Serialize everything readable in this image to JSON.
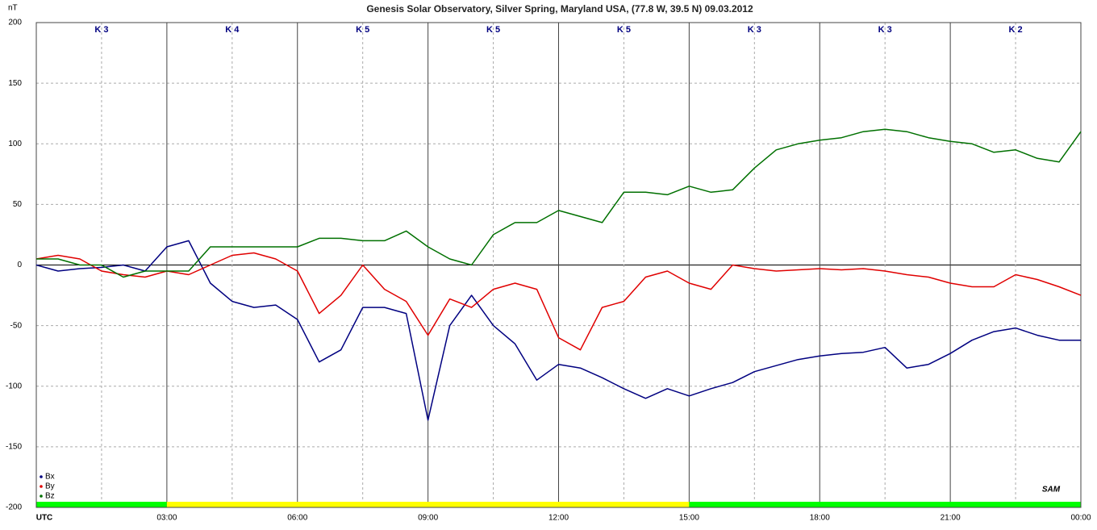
{
  "chart_data": {
    "type": "line",
    "title": "Genesis Solar Observatory, Silver Spring, Maryland USA, (77.8 W, 39.5 N)  09.03.2012",
    "y_label": "nT",
    "logo": "SAM",
    "x": [
      0,
      0.5,
      1,
      1.5,
      2,
      2.5,
      3,
      3.5,
      4,
      4.5,
      5,
      5.5,
      6,
      6.5,
      7,
      7.5,
      8,
      8.5,
      9,
      9.5,
      10,
      10.5,
      11,
      11.5,
      12,
      12.5,
      13,
      13.5,
      14,
      14.5,
      15,
      15.5,
      16,
      16.5,
      17,
      17.5,
      18,
      18.5,
      19,
      19.5,
      20,
      20.5,
      21,
      21.5,
      22,
      22.5,
      23,
      23.5,
      24
    ],
    "series": [
      {
        "name": "Bx",
        "color": "#000080",
        "values": [
          0,
          -5,
          -3,
          -2,
          0,
          -5,
          15,
          20,
          -15,
          -30,
          -35,
          -33,
          -45,
          -80,
          -70,
          -35,
          -35,
          -40,
          -128,
          -50,
          -25,
          -50,
          -65,
          -95,
          -82,
          -85,
          -93,
          -102,
          -110,
          -102,
          -108,
          -102,
          -97,
          -88,
          -83,
          -78,
          -75,
          -73,
          -72,
          -68,
          -85,
          -82,
          -73,
          -62,
          -55,
          -52,
          -58,
          -62,
          -62
        ]
      },
      {
        "name": "By",
        "color": "#e00000",
        "values": [
          5,
          8,
          5,
          -5,
          -8,
          -10,
          -5,
          -8,
          0,
          8,
          10,
          5,
          -5,
          -40,
          -25,
          0,
          -20,
          -30,
          -58,
          -28,
          -35,
          -20,
          -15,
          -20,
          -60,
          -70,
          -35,
          -30,
          -10,
          -5,
          -15,
          -20,
          0,
          -3,
          -5,
          -4,
          -3,
          -4,
          -3,
          -5,
          -8,
          -10,
          -15,
          -18,
          -18,
          -8,
          -12,
          -18,
          -25
        ]
      },
      {
        "name": "Bz",
        "color": "#007000",
        "values": [
          5,
          5,
          0,
          0,
          -10,
          -5,
          -5,
          -5,
          15,
          15,
          15,
          15,
          15,
          22,
          22,
          20,
          20,
          28,
          15,
          5,
          0,
          25,
          35,
          35,
          45,
          40,
          35,
          60,
          60,
          58,
          65,
          60,
          62,
          80,
          95,
          100,
          103,
          105,
          110,
          112,
          110,
          105,
          102,
          100,
          93,
          95,
          88,
          85,
          110
        ]
      }
    ],
    "xlim": [
      0,
      24
    ],
    "xticks": [
      {
        "value": 0,
        "label": "UTC"
      },
      {
        "value": 3,
        "label": "03:00"
      },
      {
        "value": 6,
        "label": "06:00"
      },
      {
        "value": 9,
        "label": "09:00"
      },
      {
        "value": 12,
        "label": "12:00"
      },
      {
        "value": 15,
        "label": "15:00"
      },
      {
        "value": 18,
        "label": "18:00"
      },
      {
        "value": 21,
        "label": "21:00"
      },
      {
        "value": 24,
        "label": "00:00"
      }
    ],
    "ylim": [
      -200,
      200
    ],
    "yticks": [
      -200,
      -150,
      -100,
      -50,
      0,
      50,
      100,
      150,
      200
    ],
    "k_index": [
      "K 3",
      "K 4",
      "K 5",
      "K 5",
      "K 5",
      "K 3",
      "K 3",
      "K 2"
    ],
    "status_bar": [
      {
        "start": 0,
        "end": 3,
        "color": "#00ff00"
      },
      {
        "start": 3,
        "end": 15,
        "color": "#ffff00"
      },
      {
        "start": 15,
        "end": 24,
        "color": "#00ff00"
      }
    ],
    "grid": true,
    "legend": "bottom-left"
  }
}
